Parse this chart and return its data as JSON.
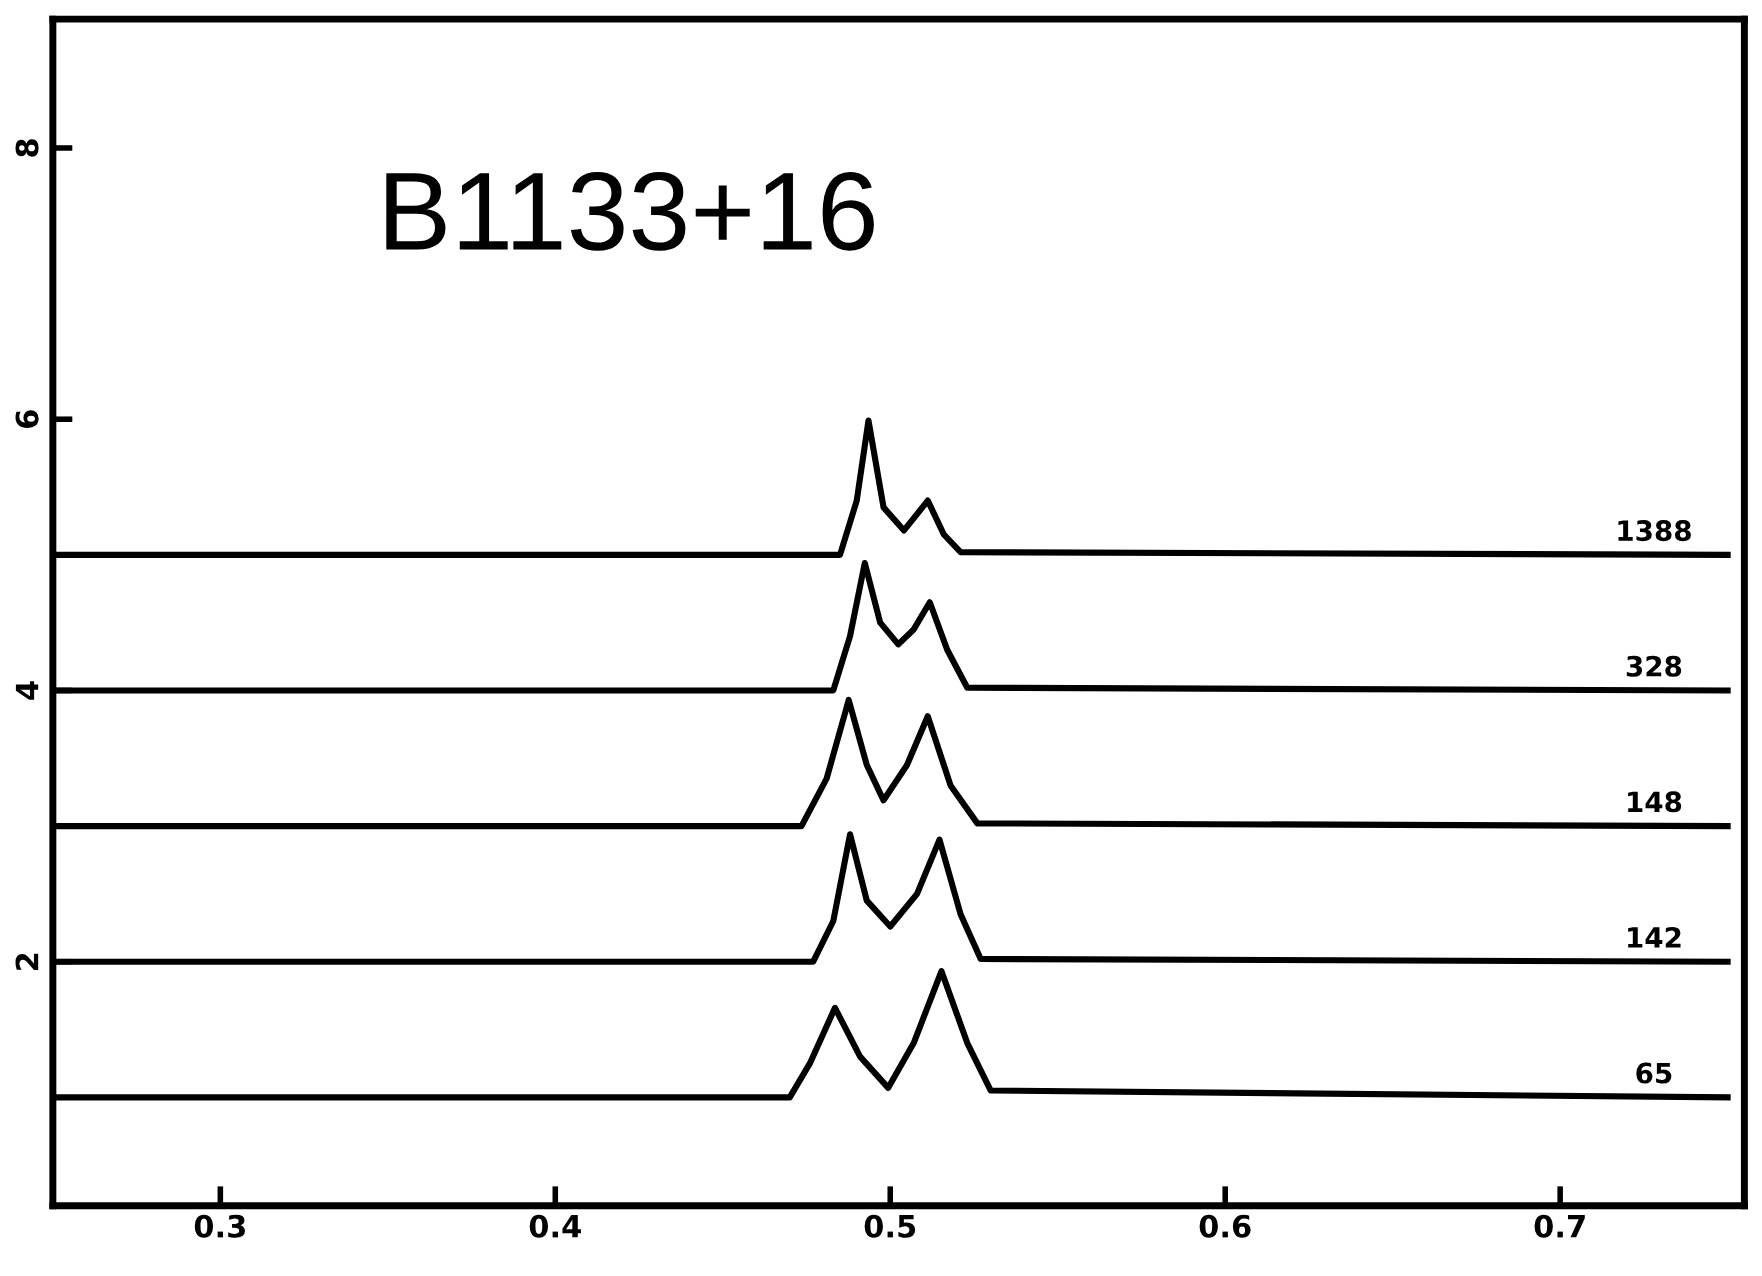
{
  "chart_data": {
    "type": "line",
    "title": "B1133+16",
    "xlim": [
      0.25,
      0.755
    ],
    "xticks": [
      0.3,
      0.4,
      0.5,
      0.6,
      0.7
    ],
    "ylim": [
      0.2,
      8.95
    ],
    "yticks": [
      2,
      4,
      6,
      8
    ],
    "grid": false,
    "legend": false,
    "marker": "none",
    "line_style": "solid",
    "series": [
      {
        "name": "65",
        "color": "#000000",
        "x": [
          0.25,
          0.47,
          0.476,
          0.4835,
          0.491,
          0.4994,
          0.507,
          0.5153,
          0.523,
          0.53,
          0.75
        ],
        "values": [
          1,
          1,
          1.25,
          1.66,
          1.3,
          1.07,
          1.4,
          1.93,
          1.4,
          1.05,
          1
        ]
      },
      {
        "name": "142",
        "color": "#000000",
        "x": [
          0.25,
          0.477,
          0.483,
          0.488,
          0.493,
          0.5,
          0.508,
          0.5147,
          0.521,
          0.527,
          0.75
        ],
        "values": [
          2,
          2,
          2.3,
          2.94,
          2.45,
          2.26,
          2.5,
          2.9,
          2.35,
          2.02,
          2
        ]
      },
      {
        "name": "148",
        "color": "#000000",
        "x": [
          0.25,
          0.4735,
          0.481,
          0.4876,
          0.493,
          0.498,
          0.505,
          0.5112,
          0.518,
          0.526,
          0.75
        ],
        "values": [
          3,
          3,
          3.35,
          3.93,
          3.45,
          3.19,
          3.45,
          3.81,
          3.3,
          3.02,
          3
        ]
      },
      {
        "name": "328",
        "color": "#000000",
        "x": [
          0.25,
          0.483,
          0.488,
          0.4924,
          0.497,
          0.5024,
          0.507,
          0.5118,
          0.517,
          0.523,
          0.75
        ],
        "values": [
          4,
          4,
          4.4,
          4.94,
          4.5,
          4.34,
          4.45,
          4.65,
          4.3,
          4.02,
          4
        ]
      },
      {
        "name": "1388",
        "color": "#000000",
        "x": [
          0.25,
          0.485,
          0.49,
          0.4935,
          0.498,
          0.5041,
          0.508,
          0.5112,
          0.516,
          0.521,
          0.75
        ],
        "values": [
          5,
          5,
          5.4,
          5.99,
          5.35,
          5.18,
          5.3,
          5.4,
          5.15,
          5.02,
          5
        ]
      }
    ]
  }
}
